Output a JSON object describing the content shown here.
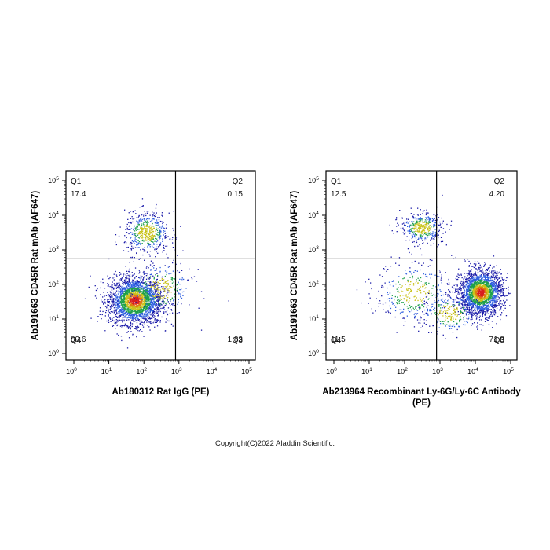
{
  "chart_data": [
    {
      "type": "scatter",
      "title": "",
      "xlabel": "Ab180312 Rat IgG (PE)",
      "ylabel": "Ab191663 CD45R Rat mAb (AF647)",
      "x_scale": "log",
      "y_scale": "log",
      "xlim": [
        1,
        100000
      ],
      "ylim": [
        1,
        100000
      ],
      "x_ticks": [
        1,
        10,
        100,
        1000,
        10000,
        100000
      ],
      "y_ticks": [
        1,
        10,
        100,
        1000,
        10000,
        100000
      ],
      "gate": {
        "x": 800,
        "y": 550
      },
      "quadrants": [
        {
          "name": "Q1",
          "value": "17.4"
        },
        {
          "name": "Q2",
          "value": "0.15"
        },
        {
          "name": "Q3",
          "value": "1.83"
        },
        {
          "name": "Q4",
          "value": "80.6"
        }
      ],
      "populations": [
        {
          "center": [
            55,
            35
          ],
          "spread": [
            0.38,
            0.34
          ],
          "count": 2600
        },
        {
          "center": [
            120,
            3200
          ],
          "spread": [
            0.32,
            0.3
          ],
          "count": 520
        },
        {
          "center": [
            300,
            80
          ],
          "spread": [
            0.45,
            0.4
          ],
          "count": 300
        }
      ]
    },
    {
      "type": "scatter",
      "title": "",
      "xlabel": "Ab213964 Recombinant Ly-6G/Ly-6C Antibody (PE)",
      "ylabel": "Ab191663 CD45R Rat mAb (AF647)",
      "x_scale": "log",
      "y_scale": "log",
      "xlim": [
        1,
        100000
      ],
      "ylim": [
        1,
        100000
      ],
      "x_ticks": [
        1,
        10,
        100,
        1000,
        10000,
        100000
      ],
      "y_ticks": [
        1,
        10,
        100,
        1000,
        10000,
        100000
      ],
      "gate": {
        "x": 800,
        "y": 550
      },
      "quadrants": [
        {
          "name": "Q1",
          "value": "12.5"
        },
        {
          "name": "Q2",
          "value": "4.20"
        },
        {
          "name": "Q3",
          "value": "71.8"
        },
        {
          "name": "Q4",
          "value": "11.5"
        }
      ],
      "populations": [
        {
          "center": [
            14000,
            60
          ],
          "spread": [
            0.3,
            0.32
          ],
          "count": 2300
        },
        {
          "center": [
            300,
            4500
          ],
          "spread": [
            0.3,
            0.22
          ],
          "count": 420
        },
        {
          "center": [
            180,
            60
          ],
          "spread": [
            0.55,
            0.45
          ],
          "count": 360
        },
        {
          "center": [
            1800,
            15
          ],
          "spread": [
            0.4,
            0.3
          ],
          "count": 260
        }
      ]
    }
  ],
  "palette": [
    "#1a1aa8",
    "#2f5fe0",
    "#1ea04a",
    "#c9c21a",
    "#e07a10",
    "#d81e1e"
  ],
  "copyright": "Copyright(C)2022 Aladdin Scientific."
}
